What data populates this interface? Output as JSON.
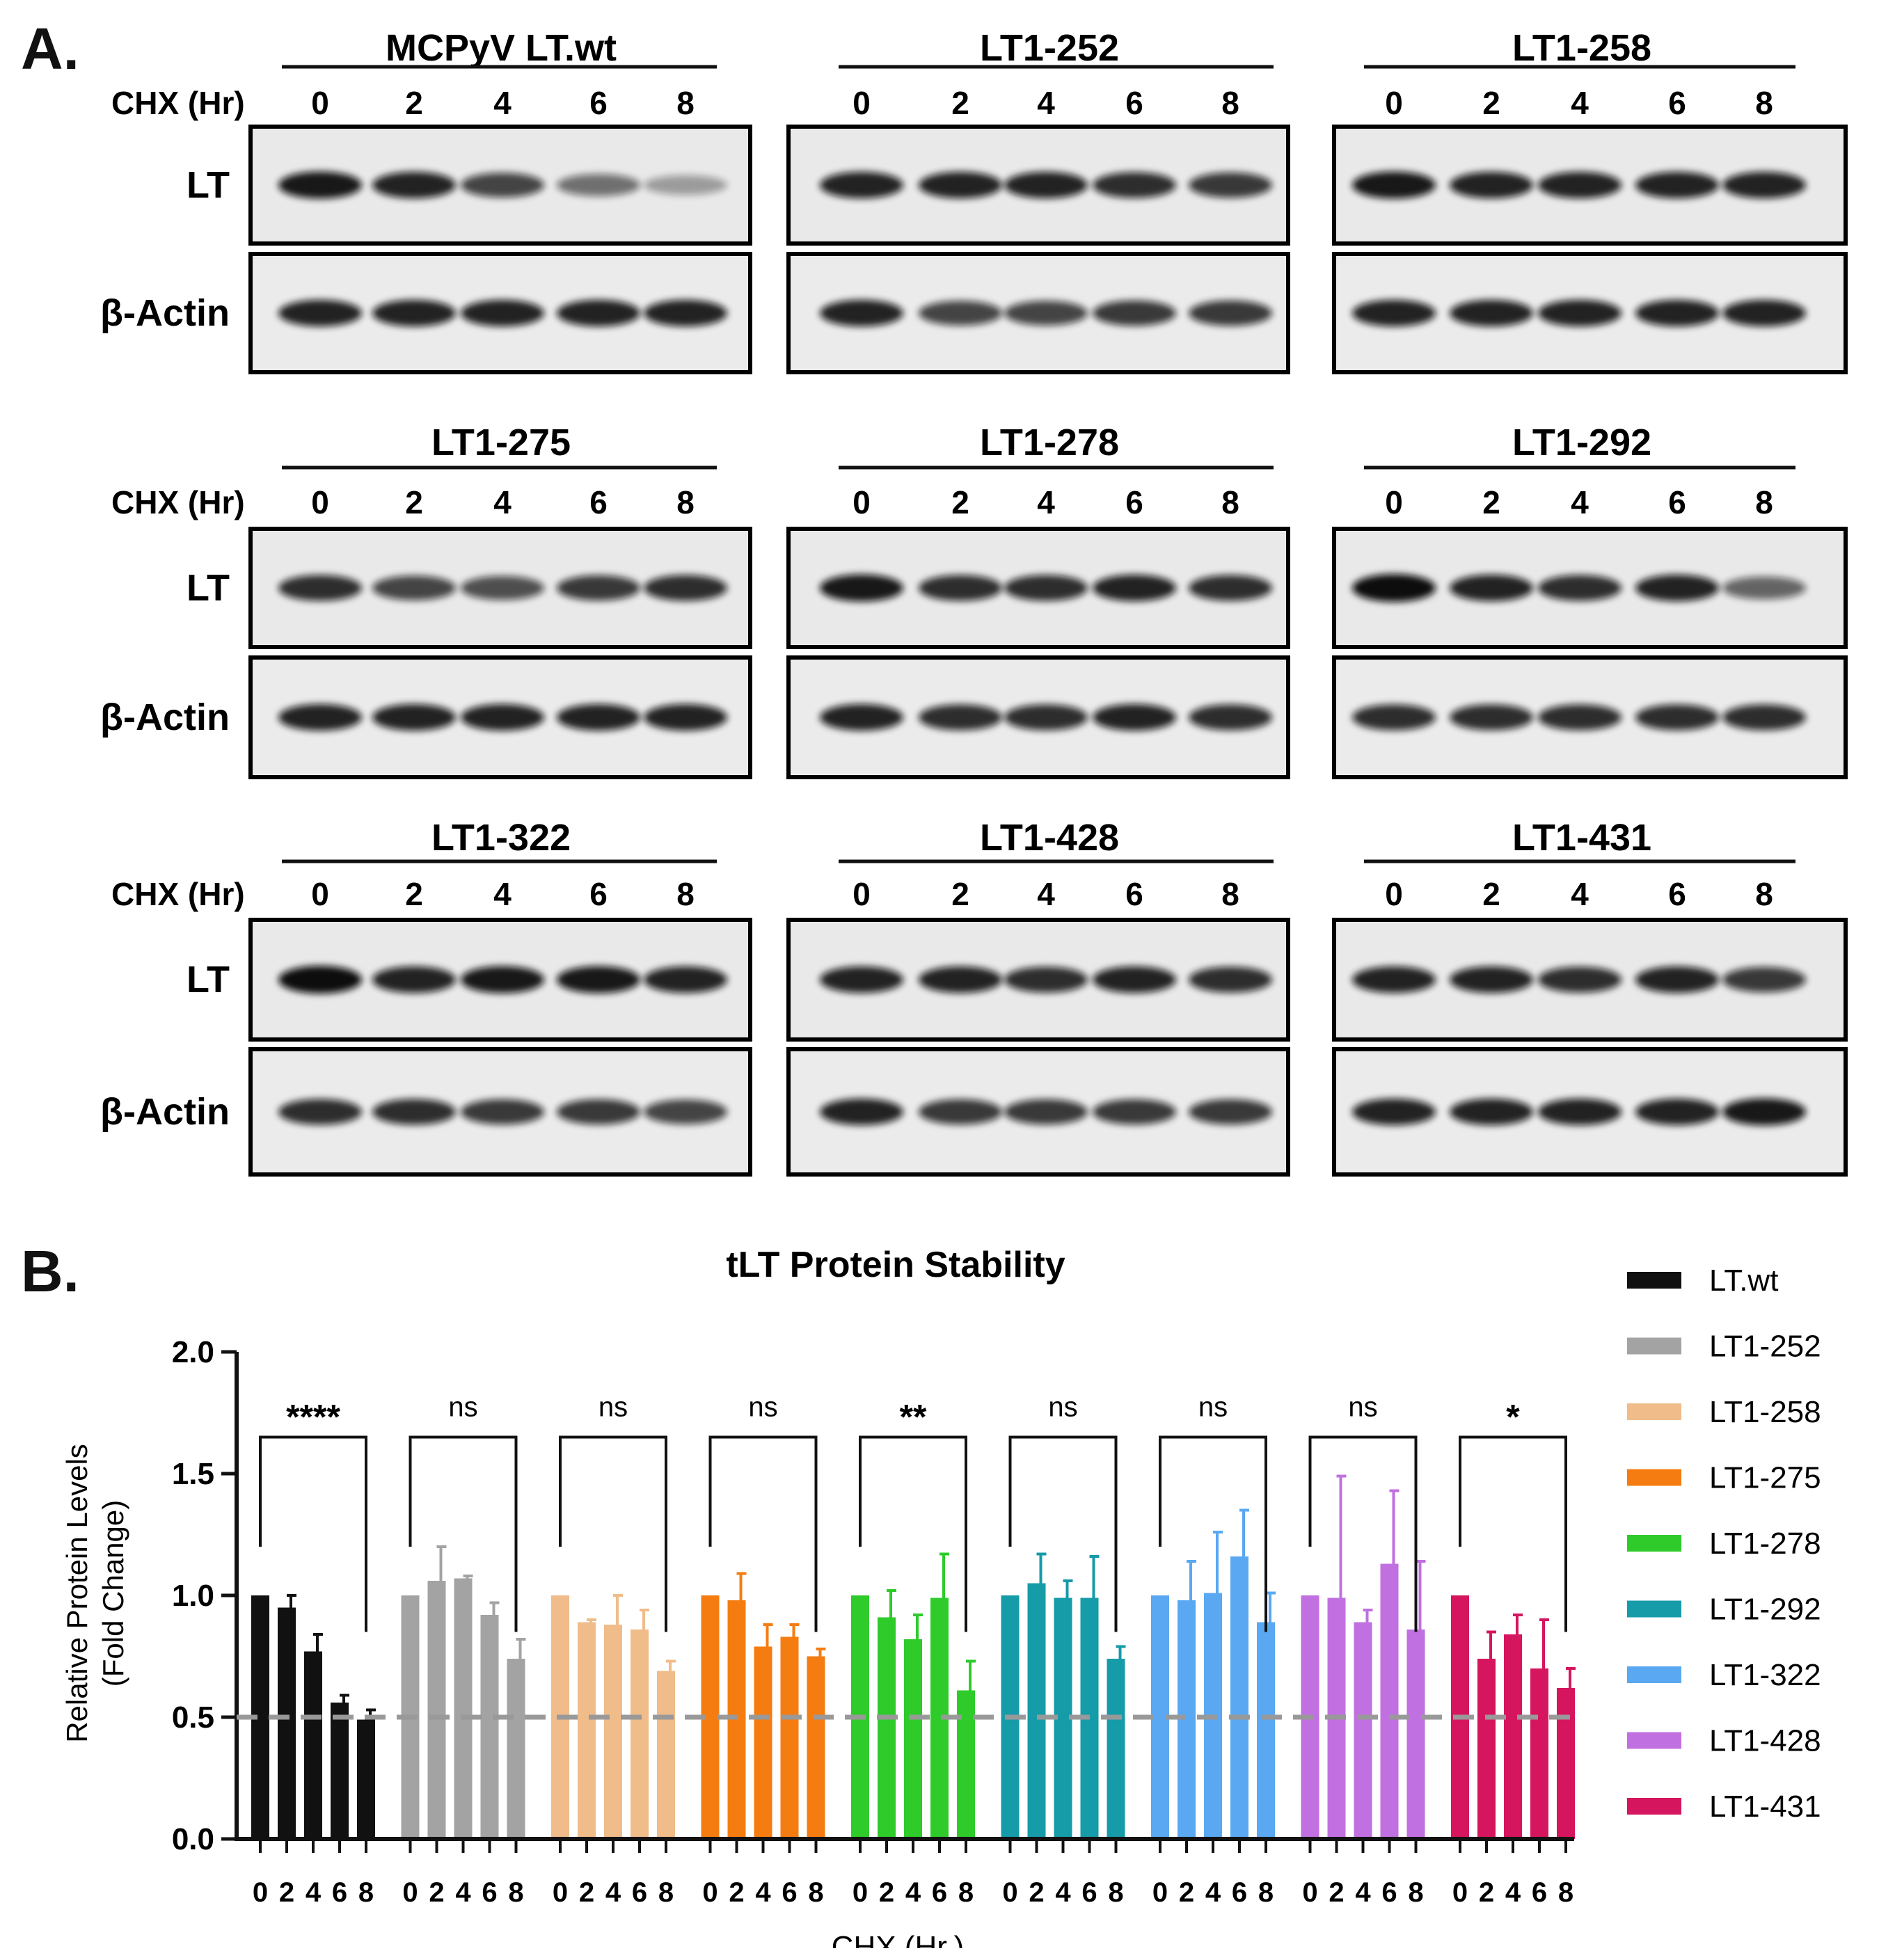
{
  "panel_a": {
    "label": "A.",
    "row_labels": {
      "cond": "CHX (Hr)",
      "lt": "LT",
      "actin": "β-Actin"
    },
    "timepoints": [
      "0",
      "2",
      "4",
      "6",
      "8"
    ],
    "blots": [
      {
        "title": "MCPyV LT.wt",
        "lt_intensity": [
          0.95,
          0.9,
          0.75,
          0.55,
          0.35
        ],
        "actin_intensity": [
          0.9,
          0.9,
          0.9,
          0.9,
          0.9
        ]
      },
      {
        "title": "LT1-252",
        "lt_intensity": [
          0.9,
          0.9,
          0.9,
          0.85,
          0.8
        ],
        "actin_intensity": [
          0.9,
          0.75,
          0.75,
          0.8,
          0.8
        ]
      },
      {
        "title": "LT1-258",
        "lt_intensity": [
          0.95,
          0.9,
          0.9,
          0.9,
          0.9
        ],
        "actin_intensity": [
          0.9,
          0.9,
          0.9,
          0.9,
          0.9
        ]
      },
      {
        "title": "LT1-275",
        "lt_intensity": [
          0.85,
          0.75,
          0.7,
          0.8,
          0.85
        ],
        "actin_intensity": [
          0.9,
          0.9,
          0.9,
          0.9,
          0.9
        ]
      },
      {
        "title": "LT1-278",
        "lt_intensity": [
          0.95,
          0.85,
          0.85,
          0.9,
          0.85
        ],
        "actin_intensity": [
          0.9,
          0.85,
          0.85,
          0.9,
          0.85
        ]
      },
      {
        "title": "LT1-292",
        "lt_intensity": [
          1.0,
          0.9,
          0.85,
          0.9,
          0.6
        ],
        "actin_intensity": [
          0.85,
          0.85,
          0.85,
          0.85,
          0.85
        ]
      },
      {
        "title": "LT1-322",
        "lt_intensity": [
          1.0,
          0.9,
          0.95,
          0.95,
          0.9
        ],
        "actin_intensity": [
          0.85,
          0.85,
          0.8,
          0.8,
          0.75
        ]
      },
      {
        "title": "LT1-428",
        "lt_intensity": [
          0.9,
          0.9,
          0.85,
          0.9,
          0.85
        ],
        "actin_intensity": [
          0.9,
          0.8,
          0.8,
          0.8,
          0.8
        ]
      },
      {
        "title": "LT1-431",
        "lt_intensity": [
          0.9,
          0.9,
          0.85,
          0.9,
          0.8
        ],
        "actin_intensity": [
          0.9,
          0.9,
          0.9,
          0.9,
          0.95
        ]
      }
    ]
  },
  "panel_b": {
    "label": "B."
  },
  "chart_data": {
    "type": "bar",
    "title": "tLT Protein Stability",
    "xlabel": "CHX (Hr.)",
    "ylabel": "Relative Protein Levels\n(Fold Change)",
    "ylabel_lines": [
      "Relative Protein Levels",
      "(Fold Change)"
    ],
    "ylim": [
      0,
      2.0
    ],
    "yticks": [
      "0.0",
      "0.5",
      "1.0",
      "1.5",
      "2.0"
    ],
    "categories": [
      "0",
      "2",
      "4",
      "6",
      "8"
    ],
    "reference_line": 0.5,
    "legend_position": "right",
    "series": [
      {
        "name": "LT.wt",
        "color": "#111111",
        "values": [
          1.0,
          0.95,
          0.77,
          0.56,
          0.49
        ],
        "errors": [
          0.0,
          0.05,
          0.07,
          0.03,
          0.04
        ],
        "significance": "****"
      },
      {
        "name": "LT1-252",
        "color": "#a3a3a3",
        "values": [
          1.0,
          1.06,
          1.07,
          0.92,
          0.74
        ],
        "errors": [
          0.0,
          0.14,
          0.01,
          0.05,
          0.08
        ],
        "significance": "ns"
      },
      {
        "name": "LT1-258",
        "color": "#f0bc8a",
        "values": [
          1.0,
          0.89,
          0.88,
          0.86,
          0.69
        ],
        "errors": [
          0.0,
          0.01,
          0.12,
          0.08,
          0.04
        ],
        "significance": "ns"
      },
      {
        "name": "LT1-275",
        "color": "#f57c10",
        "values": [
          1.0,
          0.98,
          0.79,
          0.83,
          0.75
        ],
        "errors": [
          0.0,
          0.11,
          0.09,
          0.05,
          0.03
        ],
        "significance": "ns"
      },
      {
        "name": "LT1-278",
        "color": "#2ecb2b",
        "values": [
          1.0,
          0.91,
          0.82,
          0.99,
          0.61
        ],
        "errors": [
          0.0,
          0.11,
          0.1,
          0.18,
          0.12
        ],
        "significance": "**"
      },
      {
        "name": "LT1-292",
        "color": "#169ba8",
        "values": [
          1.0,
          1.05,
          0.99,
          0.99,
          0.74
        ],
        "errors": [
          0.0,
          0.12,
          0.07,
          0.17,
          0.05
        ],
        "significance": "ns"
      },
      {
        "name": "LT1-322",
        "color": "#5aa8f2",
        "values": [
          1.0,
          0.98,
          1.01,
          1.16,
          0.89
        ],
        "errors": [
          0.0,
          0.16,
          0.25,
          0.19,
          0.12
        ],
        "significance": "ns"
      },
      {
        "name": "LT1-428",
        "color": "#c070e0",
        "values": [
          1.0,
          0.99,
          0.89,
          1.13,
          0.86
        ],
        "errors": [
          0.0,
          0.5,
          0.05,
          0.3,
          0.28
        ],
        "significance": "ns"
      },
      {
        "name": "LT1-431",
        "color": "#d6155f",
        "values": [
          1.0,
          0.74,
          0.84,
          0.7,
          0.62
        ],
        "errors": [
          0.0,
          0.11,
          0.08,
          0.2,
          0.08
        ],
        "significance": "*"
      }
    ]
  }
}
